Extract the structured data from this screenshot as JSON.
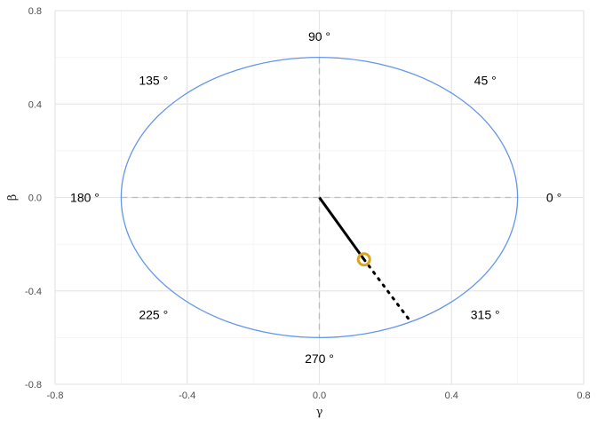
{
  "chart_data": {
    "type": "scatter",
    "xlabel": "γ",
    "ylabel": "β",
    "xlim": [
      -0.8,
      0.8
    ],
    "ylim": [
      -0.8,
      0.8
    ],
    "x_ticks": [
      "-0.8",
      "-0.4",
      "0.0",
      "0.4",
      "0.8"
    ],
    "y_ticks": [
      "-0.8",
      "-0.4",
      "0.0",
      "0.4",
      "0.8"
    ],
    "grid": true,
    "circle": {
      "radius": 0.6,
      "color": "#6495ED"
    },
    "crosshair": {
      "color": "#bdbdbd"
    },
    "angle_labels": [
      {
        "angle": 0,
        "text": "0 °"
      },
      {
        "angle": 45,
        "text": "45 °"
      },
      {
        "angle": 90,
        "text": "90 °"
      },
      {
        "angle": 135,
        "text": "135 °"
      },
      {
        "angle": 180,
        "text": "180 °"
      },
      {
        "angle": 225,
        "text": "225 °"
      },
      {
        "angle": 270,
        "text": "270 °"
      },
      {
        "angle": 315,
        "text": "315 °"
      }
    ],
    "vector": {
      "from": [
        0,
        0
      ],
      "to": [
        0.135,
        -0.265
      ],
      "color": "#000000"
    },
    "vector_extension": {
      "from": [
        0.135,
        -0.265
      ],
      "to": [
        0.27,
        -0.52
      ],
      "style": "dotted",
      "color": "#000000"
    },
    "point": {
      "x": 0.135,
      "y": -0.265,
      "color": "#DAA520"
    }
  }
}
